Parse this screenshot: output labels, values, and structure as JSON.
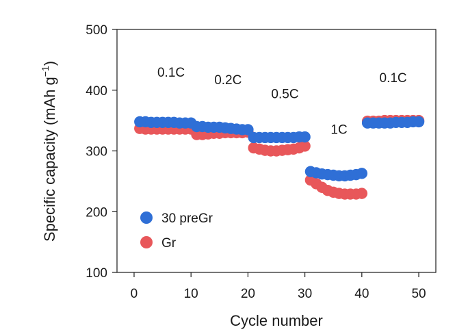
{
  "chart_data": {
    "type": "scatter",
    "xlabel": "Cycle number",
    "ylabel": "Specific capacity (mAh g",
    "ylabel_sup": "−1",
    "ylabel_close": ")",
    "xlim": [
      -3,
      53
    ],
    "ylim": [
      100,
      500
    ],
    "xticks": [
      0,
      10,
      20,
      30,
      40,
      50
    ],
    "yticks": [
      100,
      200,
      300,
      400,
      500
    ],
    "rate_labels": [
      {
        "text": "0.1C",
        "x": 6.5,
        "y": 422
      },
      {
        "text": "0.2C",
        "x": 16.5,
        "y": 410
      },
      {
        "text": "0.5C",
        "x": 26.5,
        "y": 387
      },
      {
        "text": "1C",
        "x": 36,
        "y": 328
      },
      {
        "text": "0.1C",
        "x": 45.5,
        "y": 413
      }
    ],
    "series": [
      {
        "name": "30 preGr",
        "color": "#2f6fd6",
        "x": [
          1,
          2,
          3,
          4,
          5,
          6,
          7,
          8,
          9,
          10,
          11,
          12,
          13,
          14,
          15,
          16,
          17,
          18,
          19,
          20,
          21,
          22,
          23,
          24,
          25,
          26,
          27,
          28,
          29,
          30,
          31,
          32,
          33,
          34,
          35,
          36,
          37,
          38,
          39,
          40,
          41,
          42,
          43,
          44,
          45,
          46,
          47,
          48,
          49,
          50
        ],
        "values": [
          348,
          348,
          347,
          347,
          347,
          347,
          347,
          346,
          346,
          346,
          340,
          340,
          339,
          339,
          339,
          338,
          337,
          336,
          335,
          335,
          322,
          322,
          322,
          322,
          322,
          322,
          322,
          322,
          323,
          323,
          266,
          264,
          262,
          261,
          260,
          259,
          259,
          260,
          261,
          263,
          346,
          346,
          346,
          346,
          346,
          347,
          347,
          347,
          348,
          348
        ]
      },
      {
        "name": "Gr",
        "color": "#e8575a",
        "x": [
          1,
          2,
          3,
          4,
          5,
          6,
          7,
          8,
          9,
          10,
          11,
          12,
          13,
          14,
          15,
          16,
          17,
          18,
          19,
          20,
          21,
          22,
          23,
          24,
          25,
          26,
          27,
          28,
          29,
          30,
          31,
          32,
          33,
          34,
          35,
          36,
          37,
          38,
          39,
          40,
          41,
          42,
          43,
          44,
          45,
          46,
          47,
          48,
          49,
          50
        ],
        "values": [
          337,
          336,
          336,
          336,
          336,
          336,
          336,
          336,
          336,
          336,
          327,
          327,
          328,
          329,
          329,
          330,
          330,
          330,
          330,
          331,
          305,
          303,
          301,
          300,
          300,
          301,
          302,
          303,
          305,
          308,
          252,
          246,
          240,
          235,
          232,
          230,
          229,
          229,
          229,
          230,
          349,
          349,
          349,
          350,
          350,
          350,
          350,
          350,
          350,
          350
        ]
      }
    ],
    "legend": {
      "position": "bottom-left",
      "entries": [
        "30 preGr",
        "Gr"
      ]
    }
  }
}
